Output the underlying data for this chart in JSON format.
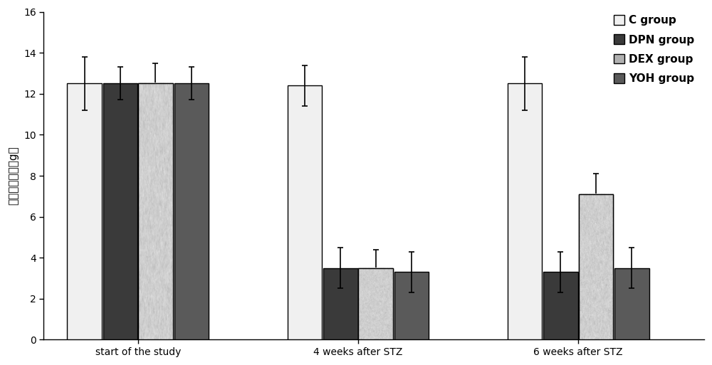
{
  "groups": [
    "start of the study",
    "4 weeks after STZ",
    "6 weeks after STZ"
  ],
  "series": [
    "C group",
    "DPN group",
    "DEX group",
    "YOH group"
  ],
  "values": [
    [
      12.5,
      12.5,
      12.5,
      12.5
    ],
    [
      12.4,
      3.5,
      3.5,
      3.3
    ],
    [
      12.5,
      3.3,
      7.1,
      3.5
    ]
  ],
  "errors": [
    [
      1.3,
      0.8,
      1.0,
      0.8
    ],
    [
      1.0,
      1.0,
      0.9,
      1.0
    ],
    [
      1.3,
      1.0,
      1.0,
      1.0
    ]
  ],
  "ylabel": "机械缩足阀値（g）",
  "ylim": [
    0,
    16
  ],
  "yticks": [
    0,
    2,
    4,
    6,
    8,
    10,
    12,
    14,
    16
  ],
  "bar_width": 0.55,
  "group_positions": [
    1.5,
    5.0,
    8.5
  ],
  "group_offsets": [
    -0.85,
    -0.28,
    0.28,
    0.85
  ],
  "background_color": "#ffffff",
  "bar_colors": [
    "#f0f0f0",
    "#3a3a3a",
    "texture",
    "#5a5a5a"
  ],
  "edgecolors": [
    "#000000",
    "#000000",
    "#000000",
    "#000000"
  ],
  "legend_labels": [
    "C group",
    "DPN group",
    "DEX group",
    "YOH group"
  ],
  "axis_fontsize": 11,
  "tick_fontsize": 10,
  "legend_fontsize": 11
}
